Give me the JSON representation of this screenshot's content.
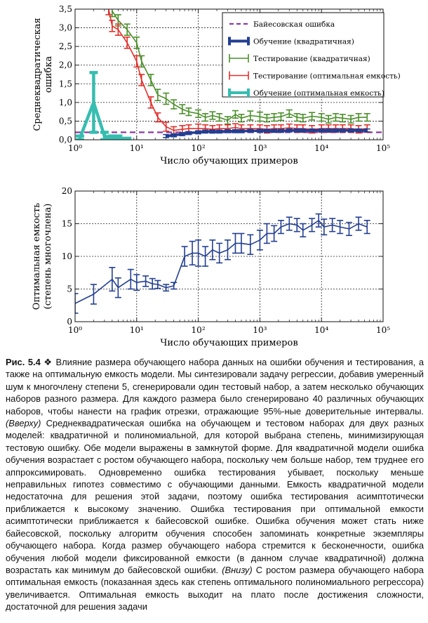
{
  "chart_data": [
    {
      "type": "line",
      "xscale": "log",
      "xlim": [
        1,
        100000
      ],
      "ylim": [
        0,
        3.5
      ],
      "xticks": [
        "10⁰",
        "10¹",
        "10²",
        "10³",
        "10⁴",
        "10⁵"
      ],
      "yticks": [
        "0,0",
        "0,5",
        "1,0",
        "1,5",
        "2,0",
        "2,5",
        "3,0",
        "3,5"
      ],
      "xlabel": "Число обучающих примеров",
      "ylabel": [
        "Среднеквадратическая",
        "ошибка"
      ],
      "grid": true,
      "legend_position": "top-right",
      "legend": [
        {
          "label": "Байесовская ошибка",
          "color": "#8b3aa0"
        },
        {
          "label": "Обучение (квадратичная)",
          "color": "#233f92"
        },
        {
          "label": "Тестирование (квадратичная)",
          "color": "#4b8f2a"
        },
        {
          "label": "Тестирование (оптимальная емкость)",
          "color": "#e0302b"
        },
        {
          "label": "Обучение (оптимальная емкость)",
          "color": "#36bdb0"
        }
      ],
      "bayes_error": 0.2,
      "series": [
        {
          "name": "Тестирование (квадратичная)",
          "color": "#4b8f2a",
          "x": [
            4,
            5,
            7,
            10,
            12,
            17,
            22,
            30,
            40,
            55,
            70,
            100,
            130,
            170,
            220,
            300,
            400,
            500,
            700,
            1000,
            1300,
            1700,
            2200,
            3000,
            4000,
            5000,
            7000,
            10000,
            13000,
            17000,
            22000,
            30000,
            40000,
            55000
          ],
          "y": [
            3.45,
            3.2,
            2.95,
            2.6,
            2.1,
            1.6,
            1.2,
            1.1,
            0.95,
            0.82,
            0.75,
            0.7,
            0.6,
            0.65,
            0.6,
            0.52,
            0.68,
            0.58,
            0.65,
            0.62,
            0.58,
            0.6,
            0.62,
            0.7,
            0.6,
            0.58,
            0.63,
            0.6,
            0.55,
            0.6,
            0.58,
            0.55,
            0.6,
            0.6
          ],
          "err": [
            0.15,
            0.15,
            0.15,
            0.15,
            0.15,
            0.15,
            0.15,
            0.15,
            0.12,
            0.12,
            0.1,
            0.1,
            0.1,
            0.1,
            0.1,
            0.1,
            0.1,
            0.1,
            0.12,
            0.12,
            0.1,
            0.1,
            0.1,
            0.1,
            0.1,
            0.1,
            0.1,
            0.1,
            0.1,
            0.1,
            0.1,
            0.1,
            0.1,
            0.1
          ]
        },
        {
          "name": "Тестирование (оптимальная емкость)",
          "color": "#e0302b",
          "x": [
            3.5,
            4,
            5,
            7,
            10,
            12,
            17,
            22,
            30,
            40,
            55,
            70,
            100,
            130,
            170,
            220,
            300,
            400,
            500,
            700,
            1000,
            1300,
            1700,
            2200,
            3000,
            4000,
            5000,
            7000,
            10000,
            13000,
            17000,
            22000,
            30000,
            40000,
            55000
          ],
          "y": [
            3.5,
            3.05,
            2.95,
            2.6,
            2.1,
            1.6,
            1.0,
            0.6,
            0.35,
            0.25,
            0.28,
            0.3,
            0.3,
            0.3,
            0.28,
            0.3,
            0.3,
            0.33,
            0.3,
            0.3,
            0.3,
            0.28,
            0.3,
            0.3,
            0.32,
            0.3,
            0.3,
            0.28,
            0.3,
            0.3,
            0.3,
            0.3,
            0.3,
            0.28,
            0.3
          ],
          "err": [
            0.15,
            0.15,
            0.15,
            0.15,
            0.15,
            0.15,
            0.15,
            0.12,
            0.12,
            0.1,
            0.1,
            0.1,
            0.12,
            0.1,
            0.1,
            0.1,
            0.1,
            0.1,
            0.1,
            0.1,
            0.1,
            0.1,
            0.1,
            0.1,
            0.1,
            0.1,
            0.1,
            0.1,
            0.1,
            0.1,
            0.1,
            0.1,
            0.1,
            0.1,
            0.1
          ]
        },
        {
          "name": "Обучение (квадратичная)",
          "color": "#233f92",
          "x": [
            30,
            40,
            55,
            70,
            100,
            130,
            170,
            220,
            300,
            400,
            500,
            700,
            1000,
            1300,
            1700,
            2200,
            3000,
            4000,
            5000,
            7000,
            10000,
            13000,
            17000,
            22000,
            30000,
            40000,
            55000
          ],
          "y": [
            0.1,
            0.12,
            0.15,
            0.18,
            0.2,
            0.22,
            0.22,
            0.22,
            0.23,
            0.23,
            0.23,
            0.24,
            0.24,
            0.24,
            0.24,
            0.24,
            0.25,
            0.25,
            0.25,
            0.25,
            0.25,
            0.25,
            0.25,
            0.25,
            0.25,
            0.25,
            0.25
          ],
          "err": [
            0.04,
            0.04,
            0.04,
            0.04,
            0.04,
            0.04,
            0.04,
            0.04,
            0.04,
            0.04,
            0.04,
            0.04,
            0.04,
            0.04,
            0.04,
            0.04,
            0.04,
            0.04,
            0.04,
            0.04,
            0.04,
            0.04,
            0.04,
            0.04,
            0.04,
            0.04,
            0.04
          ]
        },
        {
          "name": "Обучение (оптимальная емкость)",
          "color": "#36bdb0",
          "x": [
            1.2,
            2,
            3,
            4,
            5,
            7
          ],
          "y": [
            0.05,
            1.0,
            0.1,
            0.05,
            0.05,
            0.02
          ],
          "err": [
            0.05,
            0.8,
            0.1,
            0.05,
            0.05,
            0.02
          ]
        }
      ]
    },
    {
      "type": "line",
      "xscale": "log",
      "xlim": [
        1,
        100000
      ],
      "ylim": [
        0,
        20
      ],
      "xticks": [
        "10⁰",
        "10¹",
        "10²",
        "10³",
        "10⁴",
        "10⁵"
      ],
      "yticks": [
        "0",
        "5",
        "10",
        "15",
        "20"
      ],
      "xlabel": "Число обучающих примеров",
      "ylabel": [
        "Оптимальная емкость",
        "(степень многочлена)"
      ],
      "grid": true,
      "series": [
        {
          "color": "#233f92",
          "x": [
            1,
            2,
            4,
            5,
            8,
            10,
            14,
            18,
            22,
            30,
            40,
            60,
            80,
            100,
            130,
            170,
            220,
            300,
            400,
            500,
            700,
            1000,
            1300,
            1700,
            2200,
            3000,
            4000,
            5000,
            7000,
            9000,
            11000,
            15000,
            20000,
            28000,
            40000,
            55000
          ],
          "y": [
            2.8,
            4.2,
            6.5,
            5.2,
            6.5,
            6.0,
            6.2,
            5.8,
            5.7,
            5.2,
            5.5,
            10.0,
            10.5,
            10.5,
            10.0,
            11.0,
            10.5,
            11.0,
            12.0,
            12.0,
            11.8,
            12.5,
            13.5,
            13.5,
            14.5,
            15.0,
            14.8,
            14.0,
            14.8,
            15.5,
            14.5,
            14.8,
            14.5,
            14.2,
            15.0,
            14.5
          ],
          "err": [
            1.5,
            1.5,
            1.8,
            1.5,
            1.5,
            1.2,
            0.8,
            0.8,
            0.6,
            0.5,
            0.5,
            1.5,
            1.8,
            2.0,
            1.5,
            1.5,
            1.5,
            1.5,
            1.5,
            1.5,
            1.5,
            1.5,
            1.5,
            1.2,
            1.0,
            1.0,
            1.0,
            1.0,
            1.0,
            1.0,
            1.2,
            1.0,
            1.0,
            1.0,
            1.0,
            1.0
          ]
        }
      ]
    }
  ],
  "caption": {
    "label": "Рис. 5.4",
    "separator": "❖",
    "part1": "Влияние размера обучающего набора данных на ошибки обучения и тестирования, а также на оптимальную емкость модели. Мы синтезировали задачу регрессии, добавив умеренный шум к многочлену степени 5, сгенерировали один тестовый набор, а затем несколько обучающих наборов разного размера. Для каждого размера было сгенерировано 40 различных обучающих наборов, чтобы нанести на график отрезки, отражающие 95%-ные доверительные интервалы.",
    "top_label": "(Вверху)",
    "part2": "Среднеквадратическая ошибка на обучающем и тестовом наборах для двух разных моделей: квадратичной и полиномиальной, для которой выбрана степень, минимизирующая тестовую ошибку. Обе модели выражены в замкнутой форме. Для квадратичной модели ошибка обучения возрастает с ростом обучающего набора, поскольку чем больше набор, тем труднее его аппроксимировать. Одновременно ошибка тестирования убывает, поскольку меньше неправильных гипотез совместимо с обучающими данными. Емкость квадратичной модели недостаточна для решения этой задачи, поэтому ошибка тестирования асимптотически приближается к высокому значению. Ошибка тестирования при оптимальной емкости асимптотически приближается к байесовской ошибке. Ошибка обучения может стать ниже байесовской, поскольку алгоритм обучения способен запоминать конкретные экземпляры обучающего набора. Когда размер обучающего набора стремится к бесконечности, ошибка обучения любой модели фиксированной емкости (в данном случае квадратичной) должна возрастать как минимум до байесовской ошибки.",
    "bottom_label": "(Внизу)",
    "part3": "С ростом размера обучающего набора оптимальная емкость (показанная здесь как степень оптимального полиномиального регрессора) увеличивается. Оптимальная емкость выходит на плато после достижения сложности, достаточной для решения задачи"
  }
}
